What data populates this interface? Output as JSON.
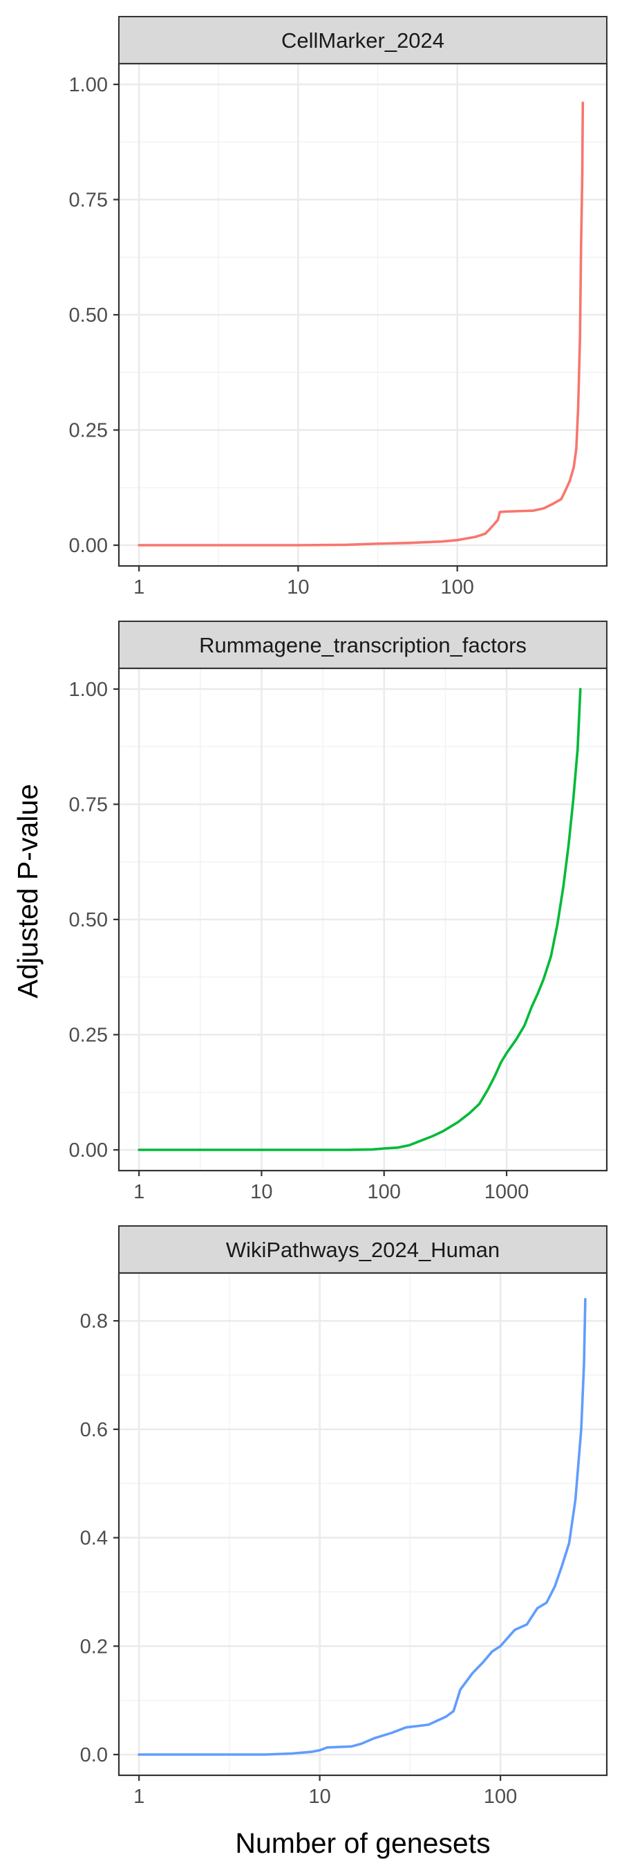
{
  "chart_data": {
    "type": "line",
    "xlabel": "Number of genesets",
    "ylabel": "Adjusted P-value",
    "x_scale": "log10",
    "grid": true,
    "legend": "none",
    "facets": [
      {
        "strip": "CellMarker_2024",
        "color": "#F8766D",
        "xlim": [
          1,
          650
        ],
        "ylim": [
          0,
          1
        ],
        "x_ticks": [
          {
            "v": 1,
            "label": "1"
          },
          {
            "v": 10,
            "label": "10"
          },
          {
            "v": 100,
            "label": "100"
          }
        ],
        "y_ticks": [
          {
            "v": 0,
            "label": "0.00"
          },
          {
            "v": 0.25,
            "label": "0.25"
          },
          {
            "v": 0.5,
            "label": "0.50"
          },
          {
            "v": 0.75,
            "label": "0.75"
          },
          {
            "v": 1,
            "label": "1.00"
          }
        ],
        "points": [
          [
            1,
            0
          ],
          [
            10,
            0
          ],
          [
            20,
            0.001
          ],
          [
            30,
            0.003
          ],
          [
            50,
            0.005
          ],
          [
            80,
            0.008
          ],
          [
            100,
            0.011
          ],
          [
            130,
            0.018
          ],
          [
            150,
            0.025
          ],
          [
            160,
            0.035
          ],
          [
            170,
            0.045
          ],
          [
            180,
            0.055
          ],
          [
            185,
            0.072
          ],
          [
            200,
            0.073
          ],
          [
            300,
            0.075
          ],
          [
            350,
            0.08
          ],
          [
            400,
            0.09
          ],
          [
            450,
            0.1
          ],
          [
            480,
            0.12
          ],
          [
            510,
            0.14
          ],
          [
            540,
            0.17
          ],
          [
            560,
            0.21
          ],
          [
            575,
            0.3
          ],
          [
            590,
            0.45
          ],
          [
            600,
            0.65
          ],
          [
            610,
            0.8
          ],
          [
            615,
            0.96
          ]
        ]
      },
      {
        "strip": "Rummagene_transcription_factors",
        "color": "#00BA38",
        "xlim": [
          1,
          4500
        ],
        "ylim": [
          0,
          1
        ],
        "x_ticks": [
          {
            "v": 1,
            "label": "1"
          },
          {
            "v": 10,
            "label": "10"
          },
          {
            "v": 100,
            "label": "100"
          },
          {
            "v": 1000,
            "label": "1000"
          }
        ],
        "y_ticks": [
          {
            "v": 0,
            "label": "0.00"
          },
          {
            "v": 0.25,
            "label": "0.25"
          },
          {
            "v": 0.5,
            "label": "0.50"
          },
          {
            "v": 0.75,
            "label": "0.75"
          },
          {
            "v": 1,
            "label": "1.00"
          }
        ],
        "points": [
          [
            1,
            0
          ],
          [
            10,
            0
          ],
          [
            50,
            0
          ],
          [
            80,
            0.001
          ],
          [
            100,
            0.003
          ],
          [
            130,
            0.005
          ],
          [
            160,
            0.01
          ],
          [
            200,
            0.02
          ],
          [
            250,
            0.03
          ],
          [
            300,
            0.04
          ],
          [
            400,
            0.06
          ],
          [
            500,
            0.08
          ],
          [
            600,
            0.1
          ],
          [
            700,
            0.13
          ],
          [
            800,
            0.16
          ],
          [
            900,
            0.19
          ],
          [
            1000,
            0.21
          ],
          [
            1200,
            0.24
          ],
          [
            1400,
            0.27
          ],
          [
            1600,
            0.31
          ],
          [
            1800,
            0.34
          ],
          [
            2000,
            0.37
          ],
          [
            2300,
            0.42
          ],
          [
            2600,
            0.49
          ],
          [
            2900,
            0.57
          ],
          [
            3200,
            0.66
          ],
          [
            3500,
            0.76
          ],
          [
            3800,
            0.87
          ],
          [
            4000,
            1.0
          ]
        ]
      },
      {
        "strip": "WikiPathways_2024_Human",
        "color": "#619CFF",
        "xlim": [
          1,
          300
        ],
        "ylim": [
          0,
          0.85
        ],
        "x_ticks": [
          {
            "v": 1,
            "label": "1"
          },
          {
            "v": 10,
            "label": "10"
          },
          {
            "v": 100,
            "label": "100"
          }
        ],
        "y_ticks": [
          {
            "v": 0,
            "label": "0.0"
          },
          {
            "v": 0.2,
            "label": "0.2"
          },
          {
            "v": 0.4,
            "label": "0.4"
          },
          {
            "v": 0.6,
            "label": "0.6"
          },
          {
            "v": 0.8,
            "label": "0.8"
          }
        ],
        "points": [
          [
            1,
            0
          ],
          [
            5,
            0
          ],
          [
            7,
            0.002
          ],
          [
            9,
            0.005
          ],
          [
            10,
            0.008
          ],
          [
            11,
            0.013
          ],
          [
            15,
            0.015
          ],
          [
            17,
            0.02
          ],
          [
            20,
            0.03
          ],
          [
            25,
            0.04
          ],
          [
            30,
            0.05
          ],
          [
            40,
            0.055
          ],
          [
            50,
            0.07
          ],
          [
            55,
            0.08
          ],
          [
            60,
            0.12
          ],
          [
            70,
            0.15
          ],
          [
            80,
            0.17
          ],
          [
            90,
            0.19
          ],
          [
            100,
            0.2
          ],
          [
            120,
            0.23
          ],
          [
            140,
            0.24
          ],
          [
            160,
            0.27
          ],
          [
            180,
            0.28
          ],
          [
            200,
            0.31
          ],
          [
            220,
            0.35
          ],
          [
            240,
            0.39
          ],
          [
            260,
            0.47
          ],
          [
            280,
            0.6
          ],
          [
            290,
            0.72
          ],
          [
            295,
            0.84
          ]
        ]
      }
    ]
  }
}
